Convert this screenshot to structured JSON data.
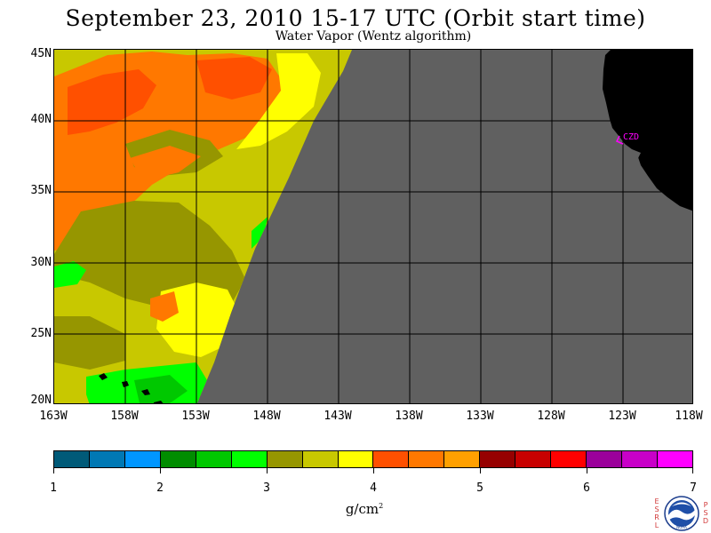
{
  "header": {
    "title": "September 23, 2010  15-17 UTC  (Orbit start time)",
    "subtitle": "Water Vapor (Wentz algorithm)"
  },
  "map": {
    "lat_labels": [
      "45N",
      "40N",
      "35N",
      "30N",
      "25N",
      "20N"
    ],
    "lon_labels": [
      "163W",
      "158W",
      "153W",
      "148W",
      "143W",
      "138W",
      "133W",
      "128W",
      "123W",
      "118W"
    ],
    "station_label": "CZD",
    "no_data_color": "#606060",
    "land_color": "#000000",
    "grid_color": "#000000",
    "station_color": "#ff00ff"
  },
  "colorbar": {
    "colors": [
      "#005a78",
      "#0078b4",
      "#0096ff",
      "#008c00",
      "#00c800",
      "#00ff00",
      "#969600",
      "#c8c800",
      "#ffff00",
      "#ff5000",
      "#ff7800",
      "#ffa000",
      "#960000",
      "#c80000",
      "#ff0000",
      "#9b009b",
      "#c800c8",
      "#ff00ff"
    ],
    "tick_labels": [
      "1",
      "2",
      "3",
      "4",
      "5",
      "6",
      "7"
    ],
    "units": "g/cm",
    "units_exp": "2"
  },
  "logo": {
    "left_letters": [
      "E",
      "S",
      "R",
      "L"
    ],
    "right_letters": [
      "P",
      "S",
      "D"
    ],
    "emblem_text": "NOAA"
  }
}
